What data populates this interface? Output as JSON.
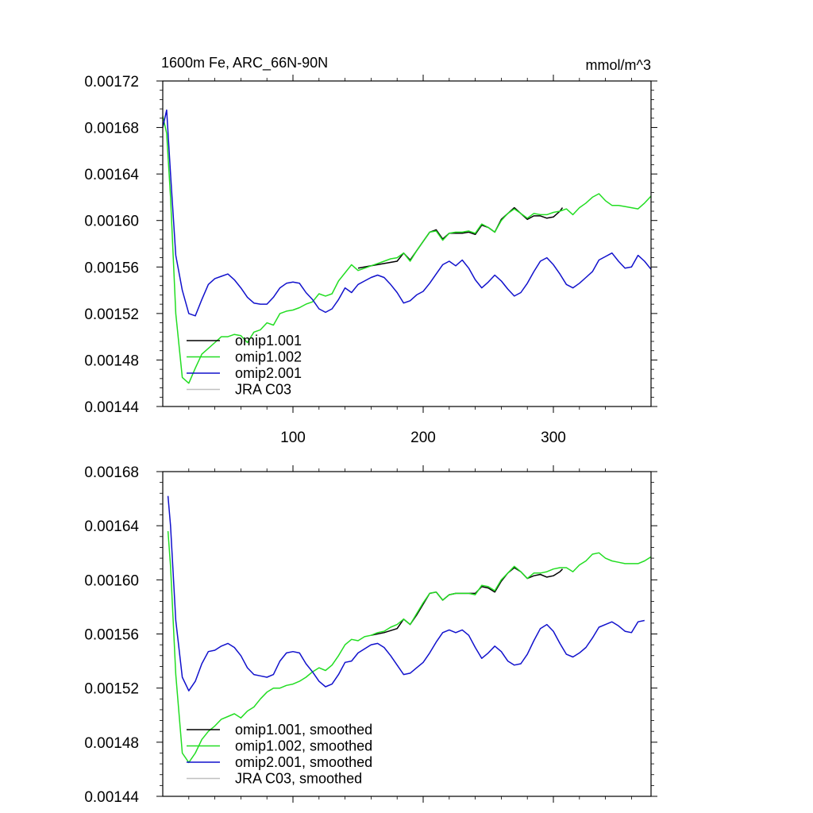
{
  "chart_data": [
    {
      "type": "line",
      "title": "1600m Fe, ARC_66N-90N",
      "units_label": "mmol/m^3",
      "xlim": [
        0,
        375
      ],
      "ylim": [
        0.00144,
        0.00172
      ],
      "xticks": [
        100,
        200,
        300
      ],
      "xtick_labels": [
        "100",
        "200",
        "300"
      ],
      "yticks": [
        0.00144,
        0.00148,
        0.00152,
        0.00156,
        0.0016,
        0.00164,
        0.00168,
        0.00172
      ],
      "ytick_labels": [
        "0.00144",
        "0.00148",
        "0.00152",
        "0.00156",
        "0.00160",
        "0.00164",
        "0.00168",
        "0.00172"
      ],
      "legend": [
        {
          "name": "omip1.001",
          "color": "#000000"
        },
        {
          "name": "omip1.002",
          "color": "#22dd22"
        },
        {
          "name": "omip2.001",
          "color": "#1111cc"
        },
        {
          "name": "JRA C03",
          "color": "#c0c0c0"
        }
      ],
      "series": [
        {
          "name": "omip1.001",
          "color": "#000000",
          "x": [
            150,
            160,
            170,
            180,
            185,
            190,
            195,
            200,
            205,
            210,
            215,
            220,
            225,
            230,
            235,
            240,
            245,
            250,
            255,
            260,
            265,
            270,
            275,
            280,
            285,
            290,
            295,
            300,
            305,
            307
          ],
          "y": [
            0.001559,
            0.001561,
            0.001563,
            0.001565,
            0.001572,
            0.001566,
            0.001574,
            0.001582,
            0.00159,
            0.001592,
            0.001584,
            0.001589,
            0.001589,
            0.001589,
            0.00159,
            0.001588,
            0.001596,
            0.001594,
            0.00159,
            0.001601,
            0.001606,
            0.001611,
            0.001606,
            0.001601,
            0.001604,
            0.001604,
            0.001602,
            0.001603,
            0.001608,
            0.001611
          ]
        },
        {
          "name": "omip1.002",
          "color": "#22dd22",
          "x": [
            0,
            3,
            6,
            10,
            15,
            20,
            25,
            30,
            35,
            40,
            45,
            50,
            55,
            60,
            65,
            70,
            75,
            80,
            85,
            90,
            95,
            100,
            105,
            110,
            115,
            120,
            125,
            130,
            135,
            140,
            145,
            150,
            155,
            160,
            165,
            170,
            175,
            180,
            185,
            190,
            195,
            200,
            205,
            210,
            215,
            220,
            225,
            230,
            235,
            240,
            245,
            250,
            255,
            260,
            265,
            270,
            275,
            280,
            285,
            290,
            295,
            300,
            305,
            310,
            315,
            320,
            325,
            330,
            335,
            340,
            345,
            350,
            355,
            360,
            365,
            370,
            375
          ],
          "y": [
            0.00169,
            0.001675,
            0.00162,
            0.00152,
            0.001465,
            0.00146,
            0.001473,
            0.001485,
            0.00149,
            0.001495,
            0.0015,
            0.0015,
            0.001502,
            0.001501,
            0.001495,
            0.001504,
            0.001506,
            0.001512,
            0.00151,
            0.00152,
            0.001522,
            0.001523,
            0.001525,
            0.001528,
            0.00153,
            0.001537,
            0.001535,
            0.001537,
            0.001548,
            0.001555,
            0.001562,
            0.001557,
            0.001559,
            0.001561,
            0.001563,
            0.001565,
            0.001567,
            0.001568,
            0.001572,
            0.001565,
            0.001574,
            0.001582,
            0.00159,
            0.001591,
            0.001583,
            0.001589,
            0.00159,
            0.00159,
            0.001591,
            0.001589,
            0.001597,
            0.001594,
            0.00159,
            0.0016,
            0.001606,
            0.00161,
            0.001606,
            0.001602,
            0.001606,
            0.001605,
            0.001605,
            0.001607,
            0.001608,
            0.00161,
            0.001605,
            0.001611,
            0.001615,
            0.00162,
            0.001623,
            0.001617,
            0.001613,
            0.001613,
            0.001612,
            0.001611,
            0.00161,
            0.001615,
            0.001621
          ]
        },
        {
          "name": "omip2.001",
          "color": "#1111cc",
          "x": [
            0,
            3,
            6,
            10,
            15,
            20,
            25,
            30,
            35,
            40,
            45,
            50,
            55,
            60,
            65,
            70,
            75,
            80,
            85,
            90,
            95,
            100,
            105,
            110,
            115,
            120,
            125,
            130,
            135,
            140,
            145,
            150,
            155,
            160,
            165,
            170,
            175,
            180,
            185,
            190,
            195,
            200,
            205,
            210,
            215,
            220,
            225,
            230,
            235,
            240,
            245,
            250,
            255,
            260,
            265,
            270,
            275,
            280,
            285,
            290,
            295,
            300,
            305,
            310,
            315,
            320,
            325,
            330,
            335,
            340,
            345,
            350,
            355,
            360,
            365,
            370,
            375
          ],
          "y": [
            0.00168,
            0.001695,
            0.00164,
            0.00157,
            0.00154,
            0.00152,
            0.001518,
            0.001532,
            0.001545,
            0.00155,
            0.001552,
            0.001554,
            0.001549,
            0.001542,
            0.001534,
            0.001529,
            0.001528,
            0.001528,
            0.001534,
            0.001542,
            0.001546,
            0.001547,
            0.001546,
            0.001538,
            0.001532,
            0.001524,
            0.001521,
            0.001524,
            0.001532,
            0.001542,
            0.001538,
            0.001545,
            0.001548,
            0.001551,
            0.001553,
            0.001551,
            0.001545,
            0.001538,
            0.001529,
            0.001531,
            0.001536,
            0.001539,
            0.001546,
            0.001554,
            0.001562,
            0.001565,
            0.001561,
            0.001566,
            0.001559,
            0.001549,
            0.001542,
            0.001547,
            0.001553,
            0.001548,
            0.001541,
            0.001535,
            0.001538,
            0.001546,
            0.001556,
            0.001565,
            0.001568,
            0.001562,
            0.001554,
            0.001545,
            0.001542,
            0.001546,
            0.001551,
            0.001556,
            0.001566,
            0.001569,
            0.001572,
            0.001565,
            0.001559,
            0.00156,
            0.00157,
            0.001565,
            0.001558
          ]
        }
      ]
    },
    {
      "type": "line",
      "title": "",
      "xlim": [
        0,
        375
      ],
      "ylim": [
        0.00144,
        0.00168
      ],
      "xticks": [
        100,
        200,
        300
      ],
      "yticks": [
        0.00144,
        0.00148,
        0.00152,
        0.00156,
        0.0016,
        0.00164,
        0.00168
      ],
      "ytick_labels": [
        "0.00144",
        "0.00148",
        "0.00152",
        "0.00156",
        "0.00160",
        "0.00164",
        "0.00168"
      ],
      "legend": [
        {
          "name": "omip1.001, smoothed",
          "color": "#000000"
        },
        {
          "name": "omip1.002, smoothed",
          "color": "#22dd22"
        },
        {
          "name": "omip2.001, smoothed",
          "color": "#1111cc"
        },
        {
          "name": "JRA C03, smoothed",
          "color": "#c0c0c0"
        }
      ],
      "series": [
        {
          "name": "omip1.001, smoothed",
          "color": "#000000",
          "x": [
            160,
            170,
            180,
            185,
            190,
            195,
            200,
            205,
            210,
            215,
            220,
            225,
            230,
            235,
            240,
            245,
            250,
            255,
            260,
            265,
            270,
            275,
            280,
            285,
            290,
            295,
            300,
            305,
            307
          ],
          "y": [
            0.001559,
            0.001561,
            0.001564,
            0.001571,
            0.001567,
            0.001574,
            0.001582,
            0.00159,
            0.001591,
            0.001585,
            0.001589,
            0.00159,
            0.00159,
            0.00159,
            0.00159,
            0.001595,
            0.001594,
            0.001591,
            0.001599,
            0.001605,
            0.001609,
            0.001606,
            0.001601,
            0.001603,
            0.001604,
            0.001602,
            0.001603,
            0.001606,
            0.001608
          ]
        },
        {
          "name": "omip1.002, smoothed",
          "color": "#22dd22",
          "x": [
            4,
            6,
            10,
            15,
            20,
            25,
            30,
            35,
            40,
            45,
            50,
            55,
            60,
            65,
            70,
            75,
            80,
            85,
            90,
            95,
            100,
            105,
            110,
            115,
            120,
            125,
            130,
            135,
            140,
            145,
            150,
            155,
            160,
            165,
            170,
            175,
            180,
            185,
            190,
            195,
            200,
            205,
            210,
            215,
            220,
            225,
            230,
            235,
            240,
            245,
            250,
            255,
            260,
            265,
            270,
            275,
            280,
            285,
            290,
            295,
            300,
            305,
            310,
            315,
            320,
            325,
            330,
            335,
            340,
            345,
            350,
            355,
            360,
            365,
            370,
            375
          ],
          "y": [
            0.001636,
            0.00161,
            0.00153,
            0.001472,
            0.001465,
            0.001472,
            0.001482,
            0.001488,
            0.001492,
            0.001497,
            0.001499,
            0.001501,
            0.001498,
            0.001503,
            0.001506,
            0.001512,
            0.001517,
            0.00152,
            0.00152,
            0.001522,
            0.001523,
            0.001525,
            0.001528,
            0.001532,
            0.001535,
            0.001533,
            0.001537,
            0.001544,
            0.001552,
            0.001556,
            0.001555,
            0.001558,
            0.001559,
            0.001561,
            0.001562,
            0.001565,
            0.001567,
            0.001571,
            0.001567,
            0.001575,
            0.001583,
            0.00159,
            0.001591,
            0.001585,
            0.001589,
            0.00159,
            0.00159,
            0.00159,
            0.001589,
            0.001596,
            0.001595,
            0.001592,
            0.0016,
            0.001605,
            0.00161,
            0.001606,
            0.001601,
            0.001605,
            0.001605,
            0.001606,
            0.001608,
            0.001609,
            0.001609,
            0.001606,
            0.001611,
            0.001614,
            0.001619,
            0.00162,
            0.001616,
            0.001614,
            0.001613,
            0.001612,
            0.001612,
            0.001612,
            0.001614,
            0.001617
          ]
        },
        {
          "name": "omip2.001, smoothed",
          "color": "#1111cc",
          "x": [
            4,
            6,
            10,
            15,
            20,
            25,
            30,
            35,
            40,
            45,
            50,
            55,
            60,
            65,
            70,
            75,
            80,
            85,
            90,
            95,
            100,
            105,
            110,
            115,
            120,
            125,
            130,
            135,
            140,
            145,
            150,
            155,
            160,
            165,
            170,
            175,
            180,
            185,
            190,
            195,
            200,
            205,
            210,
            215,
            220,
            225,
            230,
            235,
            240,
            245,
            250,
            255,
            260,
            265,
            270,
            275,
            280,
            285,
            290,
            295,
            300,
            305,
            310,
            315,
            320,
            325,
            330,
            335,
            340,
            345,
            350,
            355,
            360,
            365,
            370
          ],
          "y": [
            0.001662,
            0.00164,
            0.00157,
            0.001528,
            0.001518,
            0.001525,
            0.001538,
            0.001547,
            0.001548,
            0.001551,
            0.001553,
            0.00155,
            0.001544,
            0.001535,
            0.00153,
            0.001529,
            0.001528,
            0.00153,
            0.00154,
            0.001546,
            0.001547,
            0.001546,
            0.001538,
            0.001532,
            0.001525,
            0.001521,
            0.001523,
            0.00153,
            0.001539,
            0.00154,
            0.001546,
            0.001549,
            0.001552,
            0.001553,
            0.00155,
            0.001544,
            0.001537,
            0.00153,
            0.001531,
            0.001535,
            0.001539,
            0.001546,
            0.001554,
            0.001561,
            0.001563,
            0.001561,
            0.001563,
            0.001559,
            0.00155,
            0.001542,
            0.001546,
            0.001551,
            0.001547,
            0.00154,
            0.001537,
            0.001538,
            0.001545,
            0.001555,
            0.001564,
            0.001567,
            0.001562,
            0.001553,
            0.001545,
            0.001543,
            0.001546,
            0.00155,
            0.001557,
            0.001565,
            0.001567,
            0.001569,
            0.001566,
            0.001562,
            0.001561,
            0.001569,
            0.00157
          ]
        }
      ]
    }
  ]
}
